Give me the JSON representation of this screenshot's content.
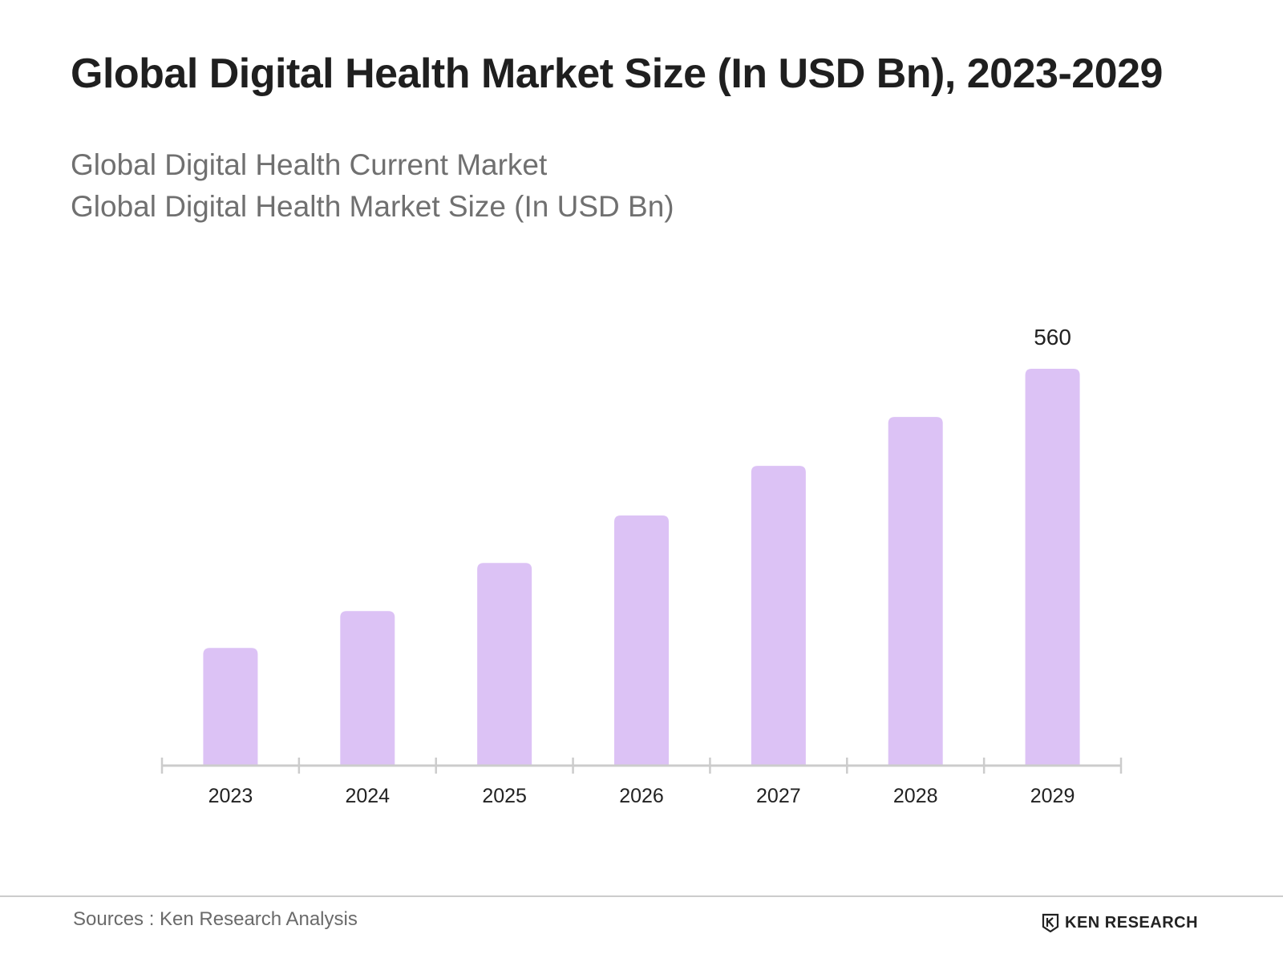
{
  "header": {
    "title": "Global Digital Health Market Size (In USD Bn), 2023-2029",
    "subtitle_line1": "Global Digital Health Current Market",
    "subtitle_line2": "Global Digital Health Market Size (In USD Bn)"
  },
  "footer": {
    "source": "Sources : Ken Research Analysis",
    "logo_text": "KEN RESEARCH"
  },
  "colors": {
    "bar": "#dcc2f5",
    "axis": "#cccccc",
    "text": "#222222"
  },
  "chart_data": {
    "type": "bar",
    "categories": [
      "2023",
      "2024",
      "2025",
      "2026",
      "2027",
      "2028",
      "2029"
    ],
    "values": [
      166,
      218,
      286,
      353,
      423,
      492,
      560
    ],
    "data_labels": [
      "",
      "",
      "",
      "",
      "",
      "",
      "560"
    ],
    "title": "Global Digital Health Market Size (In USD Bn), 2023-2029",
    "xlabel": "",
    "ylabel": "",
    "ylim": [
      0,
      560
    ],
    "grid": false,
    "legend": "none"
  }
}
